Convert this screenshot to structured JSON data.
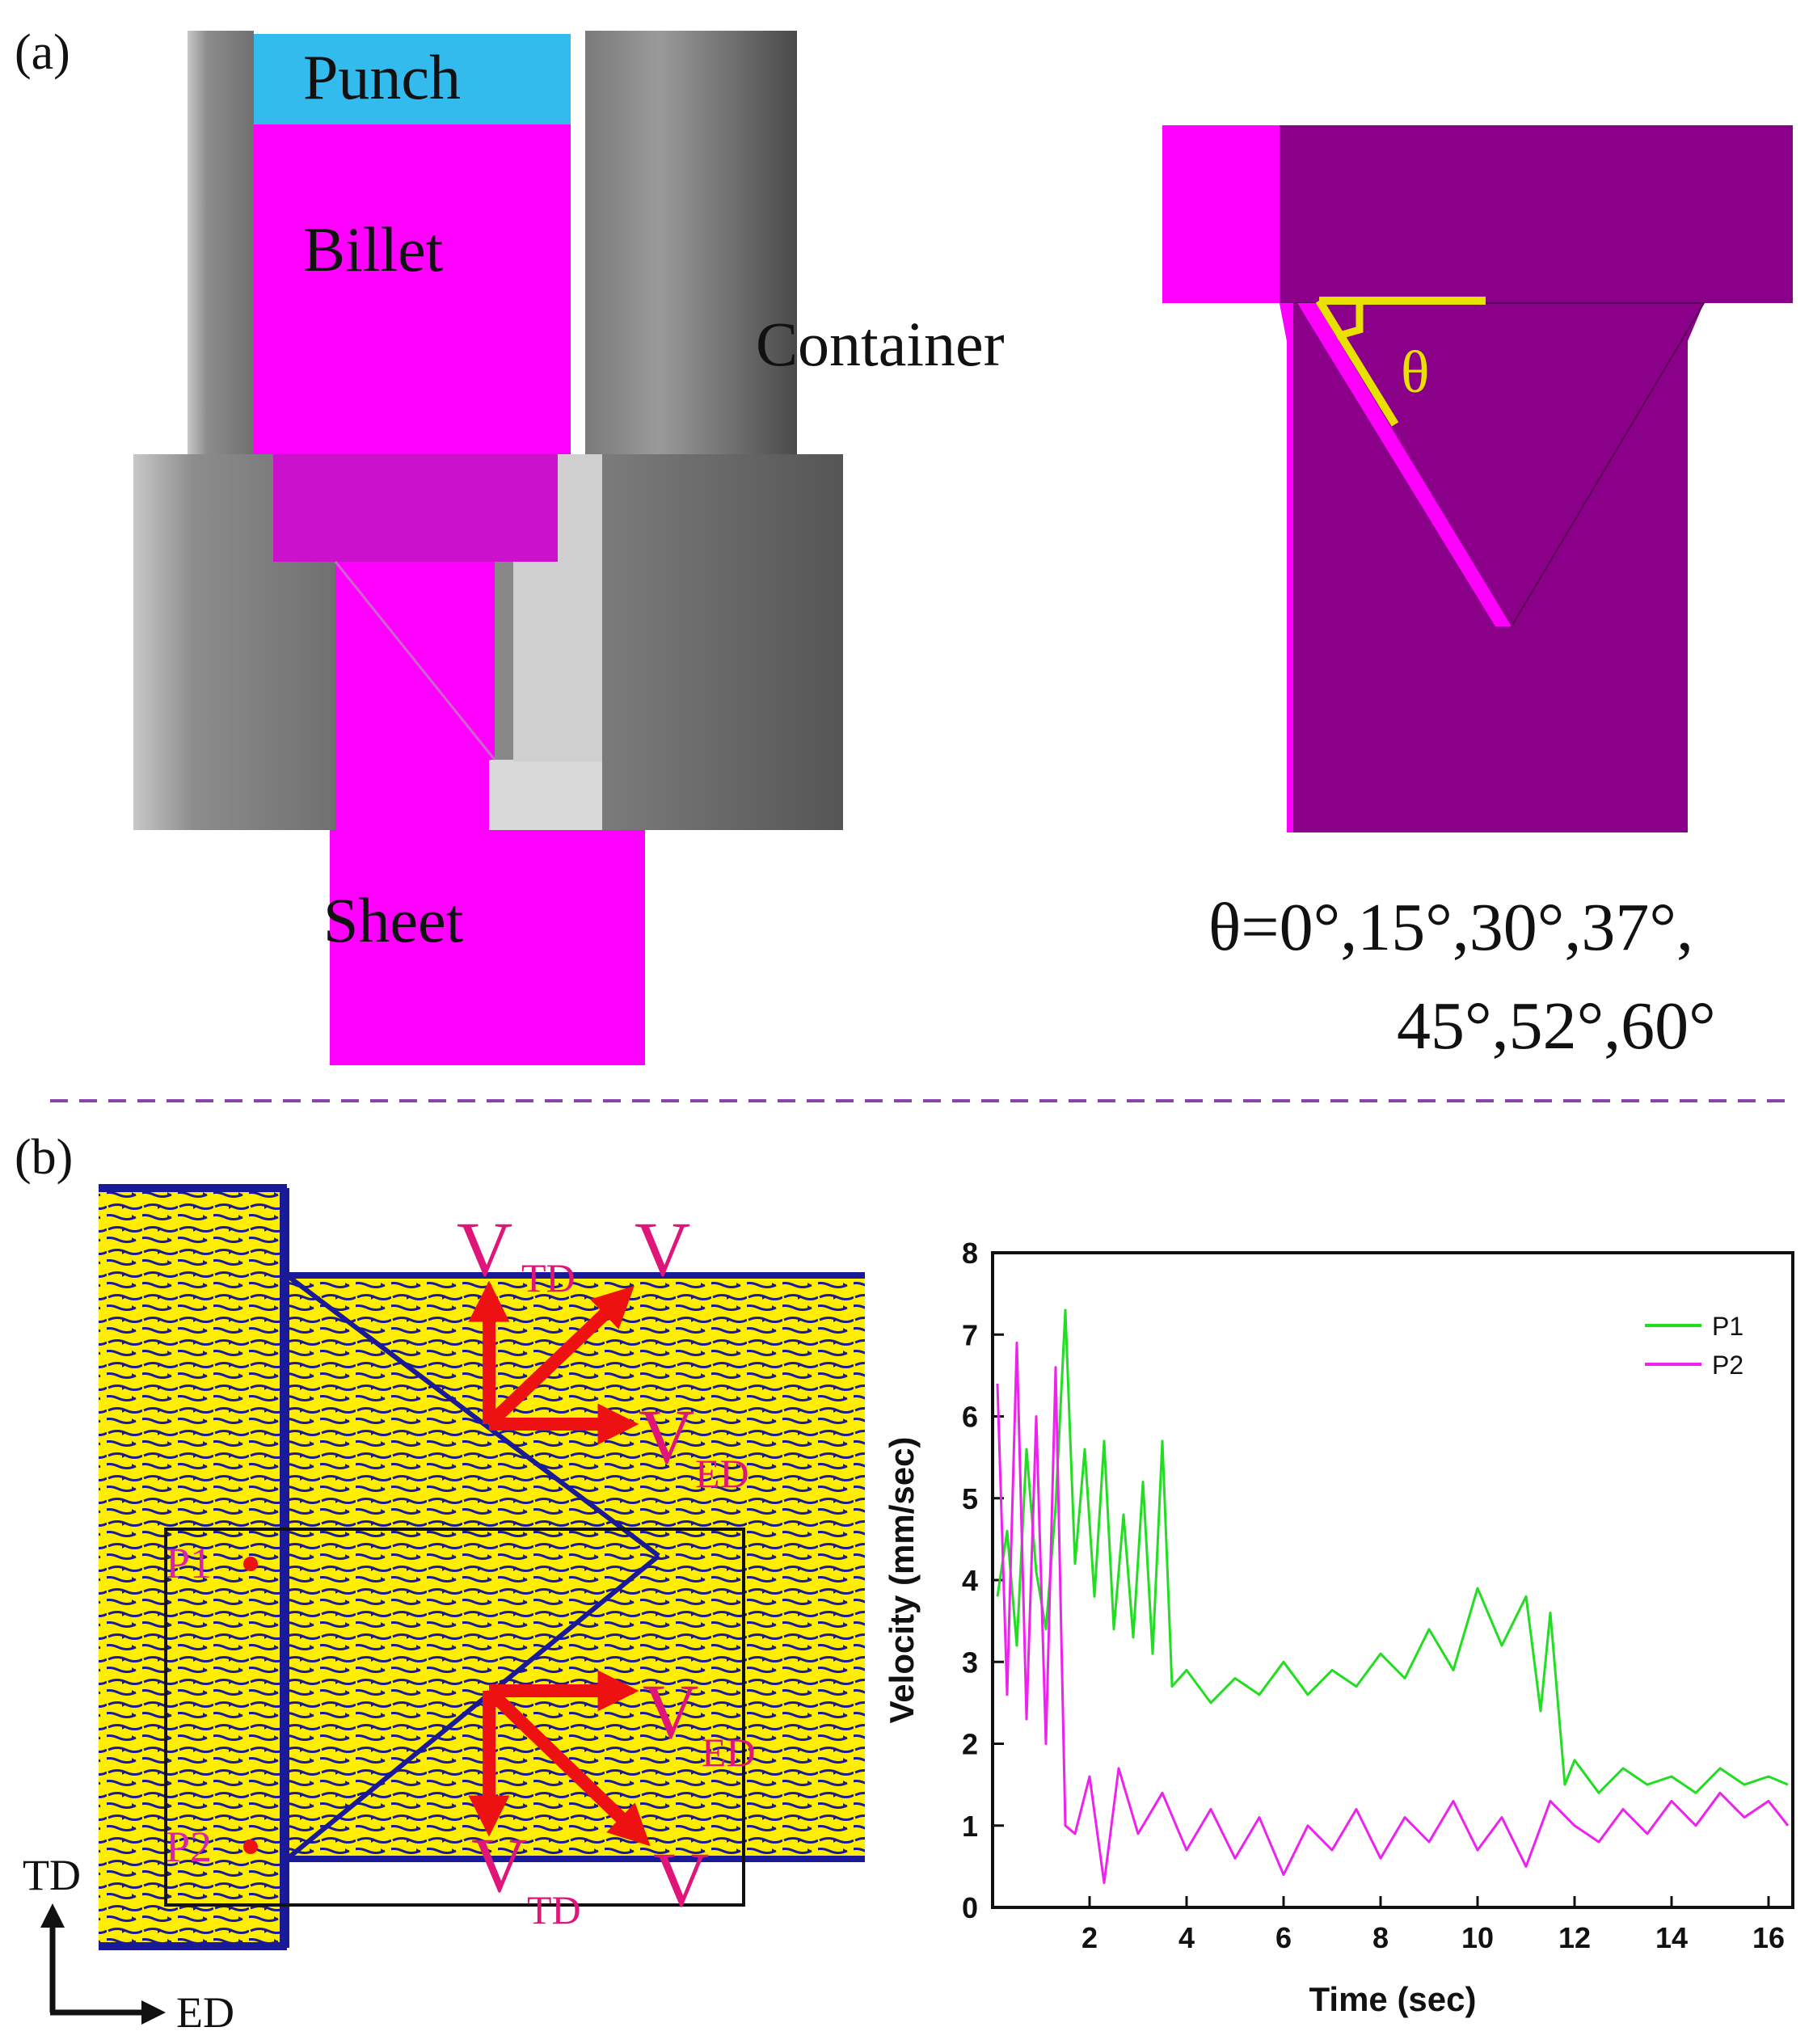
{
  "panel_a": {
    "label": "(a)",
    "parts": {
      "punch": "Punch",
      "billet": "Billet",
      "container": "Container",
      "sheet": "Sheet"
    },
    "angle_symbol": "θ",
    "angle_values_line1": "θ=0°,15°,30°,37°,",
    "angle_values_line2": "45°,52°,60°"
  },
  "panel_b": {
    "label": "(b)",
    "points": {
      "p1": "P1",
      "p2": "P2"
    },
    "vectors": {
      "top": {
        "v_main": "V",
        "v_td": "V",
        "td_sub": "TD",
        "v_ed": "V",
        "ed_sub": "ED"
      },
      "bottom": {
        "v_ed": "V",
        "ed_sub": "ED",
        "v_td": "V",
        "td_sub": "TD",
        "v_main": "V"
      }
    },
    "axes_indicator": {
      "td": "TD",
      "ed": "ED"
    }
  },
  "colors": {
    "magenta": "#ff00ff",
    "purple": "#8b0089",
    "punch_blue": "#33bbee",
    "container_gray": "#808080",
    "field_yellow": "#ffee00",
    "flow_blue": "#1a1a99",
    "arrow_red": "#ee1111",
    "p1_green": "#22dd22",
    "p2_magenta": "#ee22ee",
    "separator": "#8844aa"
  },
  "chart_data": {
    "type": "line",
    "xlabel": "Time (sec)",
    "ylabel": "Velocity (mm/sec)",
    "xlim": [
      0,
      16.5
    ],
    "ylim": [
      0,
      8
    ],
    "xticks": [
      2,
      4,
      6,
      8,
      10,
      12,
      14,
      16
    ],
    "yticks": [
      0,
      1,
      2,
      3,
      4,
      5,
      6,
      7,
      8
    ],
    "legend_position": "top-right",
    "series": [
      {
        "name": "P1",
        "color": "#22dd22",
        "x": [
          0.1,
          0.3,
          0.5,
          0.7,
          0.9,
          1.1,
          1.3,
          1.5,
          1.7,
          1.9,
          2.1,
          2.3,
          2.5,
          2.7,
          2.9,
          3.1,
          3.3,
          3.5,
          3.7,
          4.0,
          4.5,
          5.0,
          5.5,
          6.0,
          6.5,
          7.0,
          7.5,
          8.0,
          8.5,
          9.0,
          9.5,
          10.0,
          10.5,
          11.0,
          11.3,
          11.5,
          11.8,
          12.0,
          12.5,
          13.0,
          13.5,
          14.0,
          14.5,
          15.0,
          15.5,
          16.0,
          16.4
        ],
        "y": [
          3.8,
          4.6,
          3.2,
          5.6,
          4.1,
          3.4,
          4.9,
          7.3,
          4.2,
          5.6,
          3.8,
          5.7,
          3.4,
          4.8,
          3.3,
          5.2,
          3.1,
          5.7,
          2.7,
          2.9,
          2.5,
          2.8,
          2.6,
          3.0,
          2.6,
          2.9,
          2.7,
          3.1,
          2.8,
          3.4,
          2.9,
          3.9,
          3.2,
          3.8,
          2.4,
          3.6,
          1.5,
          1.8,
          1.4,
          1.7,
          1.5,
          1.6,
          1.4,
          1.7,
          1.5,
          1.6,
          1.5
        ]
      },
      {
        "name": "P2",
        "color": "#ee22ee",
        "x": [
          0.1,
          0.3,
          0.5,
          0.7,
          0.9,
          1.1,
          1.3,
          1.5,
          1.7,
          2.0,
          2.3,
          2.6,
          3.0,
          3.5,
          4.0,
          4.5,
          5.0,
          5.5,
          6.0,
          6.5,
          7.0,
          7.5,
          8.0,
          8.5,
          9.0,
          9.5,
          10.0,
          10.5,
          11.0,
          11.5,
          12.0,
          12.5,
          13.0,
          13.5,
          14.0,
          14.5,
          15.0,
          15.5,
          16.0,
          16.4
        ],
        "y": [
          6.4,
          2.6,
          6.9,
          2.3,
          6.0,
          2.0,
          6.6,
          1.0,
          0.9,
          1.6,
          0.3,
          1.7,
          0.9,
          1.4,
          0.7,
          1.2,
          0.6,
          1.1,
          0.4,
          1.0,
          0.7,
          1.2,
          0.6,
          1.1,
          0.8,
          1.3,
          0.7,
          1.1,
          0.5,
          1.3,
          1.0,
          0.8,
          1.2,
          0.9,
          1.3,
          1.0,
          1.4,
          1.1,
          1.3,
          1.0
        ]
      }
    ]
  }
}
